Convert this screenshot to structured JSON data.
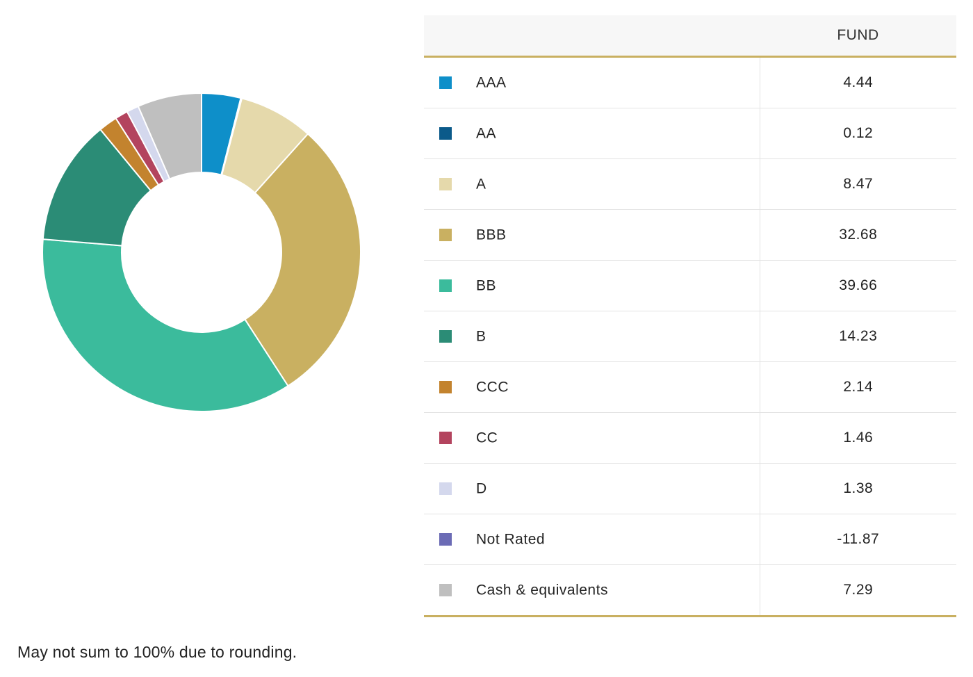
{
  "table": {
    "column_header": "FUND"
  },
  "chart_data": {
    "type": "pie",
    "categories": [
      "AAA",
      "AA",
      "A",
      "BBB",
      "BB",
      "B",
      "CCC",
      "CC",
      "D",
      "Not Rated",
      "Cash & equivalents"
    ],
    "values": [
      4.44,
      0.12,
      8.47,
      32.68,
      39.66,
      14.23,
      2.14,
      1.46,
      1.38,
      -11.87,
      7.29
    ],
    "value_labels": [
      "4.44",
      "0.12",
      "8.47",
      "32.68",
      "39.66",
      "14.23",
      "2.14",
      "1.46",
      "1.38",
      "-11.87",
      "7.29"
    ],
    "colors": [
      "#0e8fc9",
      "#0b5a8a",
      "#e5d9ab",
      "#c9b061",
      "#3bbb9c",
      "#2b8c76",
      "#c3832e",
      "#b3445e",
      "#d4d8ed",
      "#6b6bb5",
      "#bfbfbf"
    ],
    "donut": true,
    "legend": "table-right"
  },
  "footnote": "May not sum to 100% due to rounding."
}
